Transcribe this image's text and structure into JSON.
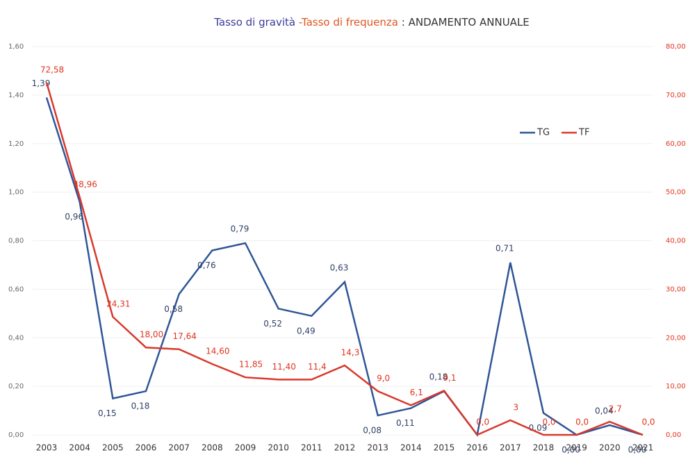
{
  "chart_data": {
    "type": "line",
    "title": [
      {
        "text": "Tasso di gravità ",
        "color": "#3a3a9a"
      },
      {
        "text": "-Tasso di frequenza",
        "color": "#e0541e"
      },
      {
        "text": " : ANDAMENTO ANNUALE",
        "color": "#333333"
      }
    ],
    "categories": [
      "2003",
      "2004",
      "2005",
      "2006",
      "2007",
      "2008",
      "2009",
      "2010",
      "2011",
      "2012",
      "2013",
      "2014",
      "2015",
      "2016",
      "2017",
      "2018",
      "2019",
      "2020",
      "2021"
    ],
    "series": [
      {
        "name": "TG",
        "color": "#2f5597",
        "axis": "y",
        "values": [
          1.39,
          0.96,
          0.15,
          0.18,
          0.58,
          0.76,
          0.79,
          0.52,
          0.49,
          0.63,
          0.08,
          0.11,
          0.18,
          0,
          0.71,
          0.09,
          0,
          0.04,
          0
        ],
        "value_labels": [
          "1,39",
          "0,96",
          "0,15",
          "0,18",
          "0,58",
          "0,76",
          "0,79",
          "0,52",
          "0,49",
          "0,63",
          "0,08",
          "0,11",
          "0,18",
          null,
          "0,71",
          "0,09",
          "0,00",
          "0,04",
          "0,00"
        ]
      },
      {
        "name": "TF",
        "color": "#d9382b",
        "axis": "y2",
        "values": [
          72.58,
          48.96,
          24.31,
          18.0,
          17.64,
          14.6,
          11.85,
          11.4,
          11.4,
          14.3,
          9.0,
          6.1,
          9.1,
          0.0,
          3,
          0.0,
          0.0,
          2.7,
          0.0
        ],
        "value_labels": [
          "72,58",
          "48,96",
          "24,31",
          "18,00",
          "17,64",
          "14,60",
          "11,85",
          "11,40",
          "11,4",
          "14,3",
          "9,0",
          "6,1",
          "9,1",
          "0,0",
          "3",
          "0,0",
          "0,0",
          "2,7",
          "0,0"
        ]
      }
    ],
    "ylim": [
      0,
      1.6
    ],
    "yticks": [
      {
        "value": 0,
        "label": "0,00"
      },
      {
        "value": 0.2,
        "label": "0,20"
      },
      {
        "value": 0.4,
        "label": "0,40"
      },
      {
        "value": 0.6,
        "label": "0,60"
      },
      {
        "value": 0.8,
        "label": "0,80"
      },
      {
        "value": 1.0,
        "label": "1,00"
      },
      {
        "value": 1.2,
        "label": "1,20"
      },
      {
        "value": 1.4,
        "label": "1,40"
      },
      {
        "value": 1.6,
        "label": "1,60"
      }
    ],
    "y2lim": [
      0,
      80
    ],
    "y2ticks": [
      {
        "value": 0,
        "label": "0,00"
      },
      {
        "value": 10,
        "label": "10,00"
      },
      {
        "value": 20,
        "label": "20,00"
      },
      {
        "value": 30,
        "label": "30,00"
      },
      {
        "value": 40,
        "label": "40,00"
      },
      {
        "value": 50,
        "label": "50,00"
      },
      {
        "value": 60,
        "label": "60,00"
      },
      {
        "value": 70,
        "label": "70,00"
      },
      {
        "value": 80,
        "label": "80,00"
      }
    ],
    "grid": true,
    "legend": "upper right"
  }
}
